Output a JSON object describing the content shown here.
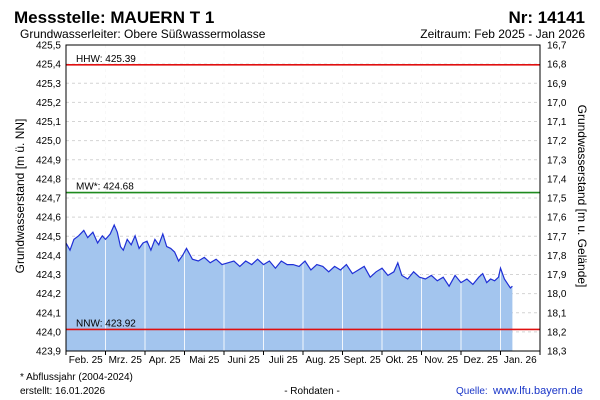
{
  "header": {
    "station": "Messstelle: MAUERN T 1",
    "number": "Nr: 14141",
    "aquifer": "Grundwasserleiter:   Obere Süßwassermolasse",
    "period": "Zeitraum: Feb 2025 - Jan 2026"
  },
  "footer": {
    "note": "* Abflussjahr (2004-2024)",
    "created": "erstellt:  16.01.2026",
    "rawdata": "- Rohdaten -",
    "source_label": "Quelle: ",
    "source_link": "www.lfu.bayern.de"
  },
  "colors": {
    "fill": "#a3c5ee",
    "line": "#1f2fd6",
    "hhw": "#e01010",
    "mw": "#1e8a1e",
    "nnw": "#e01010"
  },
  "chart_data": {
    "type": "area",
    "ylabel": "Grundwasserstand [m ü. NN]",
    "y2label": "Grundwasserstand [m u. Gelände]",
    "ylim": [
      423.8,
      425.5
    ],
    "y_ticks": [
      "425,5",
      "425,4",
      "425,3",
      "425,2",
      "425,1",
      "425,0",
      "424,9",
      "424,8",
      "424,7",
      "424,6",
      "424,5",
      "424,4",
      "424,3",
      "424,2",
      "424,1",
      "424,0",
      "423,9"
    ],
    "y2_ticks": [
      "16,7",
      "16,8",
      "16,9",
      "17,0",
      "17,1",
      "17,2",
      "17,3",
      "17,4",
      "17,5",
      "17,6",
      "17,7",
      "17,8",
      "17,9",
      "18,0",
      "18,1",
      "18,2",
      "18,3"
    ],
    "x_ticks": [
      "Feb. 25",
      "Mrz. 25",
      "Apr. 25",
      "Mai 25",
      "Juni 25",
      "Juli 25",
      "Aug. 25",
      "Sept. 25",
      "Okt. 25",
      "Nov. 25",
      "Dez. 25",
      "Jan. 26"
    ],
    "grid": true,
    "reference_lines": [
      {
        "label": "HHW: 425.39",
        "value": 425.39
      },
      {
        "label": "MW*: 424.68",
        "value": 424.68
      },
      {
        "label": "NNW: 423.92",
        "value": 423.92
      }
    ],
    "series": [
      {
        "x_unit": "month",
        "x": [
          0.0,
          0.1,
          0.2,
          0.32,
          0.45,
          0.55,
          0.68,
          0.8,
          0.92,
          1.0,
          1.12,
          1.22,
          1.3,
          1.38,
          1.45,
          1.55,
          1.65,
          1.75,
          1.85,
          1.95,
          2.05,
          2.15,
          2.25,
          2.35,
          2.45,
          2.55,
          2.65,
          2.75,
          2.85,
          2.95,
          3.05,
          3.2,
          3.35,
          3.5,
          3.65,
          3.8,
          3.95,
          4.1,
          4.25,
          4.4,
          4.55,
          4.7,
          4.85,
          5.0,
          5.15,
          5.3,
          5.45,
          5.6,
          5.75,
          5.9,
          6.05,
          6.2,
          6.35,
          6.5,
          6.65,
          6.8,
          6.95,
          7.1,
          7.25,
          7.4,
          7.55,
          7.7,
          7.85,
          8.0,
          8.15,
          8.3,
          8.4,
          8.5,
          8.65,
          8.8,
          8.95,
          9.1,
          9.25,
          9.4,
          9.55,
          9.7,
          9.85,
          10.0,
          10.15,
          10.3,
          10.45,
          10.55,
          10.65,
          10.75,
          10.85,
          10.95,
          11.0,
          11.1,
          11.25,
          11.3
        ],
        "y": [
          424.4,
          424.36,
          424.42,
          424.44,
          424.47,
          424.43,
          424.46,
          424.4,
          424.44,
          424.42,
          424.45,
          424.5,
          424.46,
          424.38,
          424.36,
          424.42,
          424.39,
          424.44,
          424.37,
          424.4,
          424.41,
          424.36,
          424.42,
          424.39,
          424.45,
          424.38,
          424.37,
          424.35,
          424.3,
          424.33,
          424.37,
          424.31,
          424.3,
          424.32,
          424.29,
          424.31,
          424.28,
          424.29,
          424.3,
          424.27,
          424.3,
          424.28,
          424.31,
          424.28,
          424.3,
          424.26,
          424.3,
          424.28,
          424.28,
          424.27,
          424.3,
          424.25,
          424.28,
          424.27,
          424.24,
          424.27,
          424.25,
          424.28,
          424.23,
          424.25,
          424.27,
          424.21,
          424.24,
          424.26,
          424.22,
          424.24,
          424.29,
          424.22,
          424.2,
          424.24,
          424.21,
          424.2,
          424.22,
          424.19,
          424.21,
          424.16,
          424.22,
          424.18,
          424.2,
          424.17,
          424.21,
          424.23,
          424.18,
          424.2,
          424.19,
          424.21,
          424.26,
          424.2,
          424.15,
          424.16
        ]
      }
    ]
  }
}
